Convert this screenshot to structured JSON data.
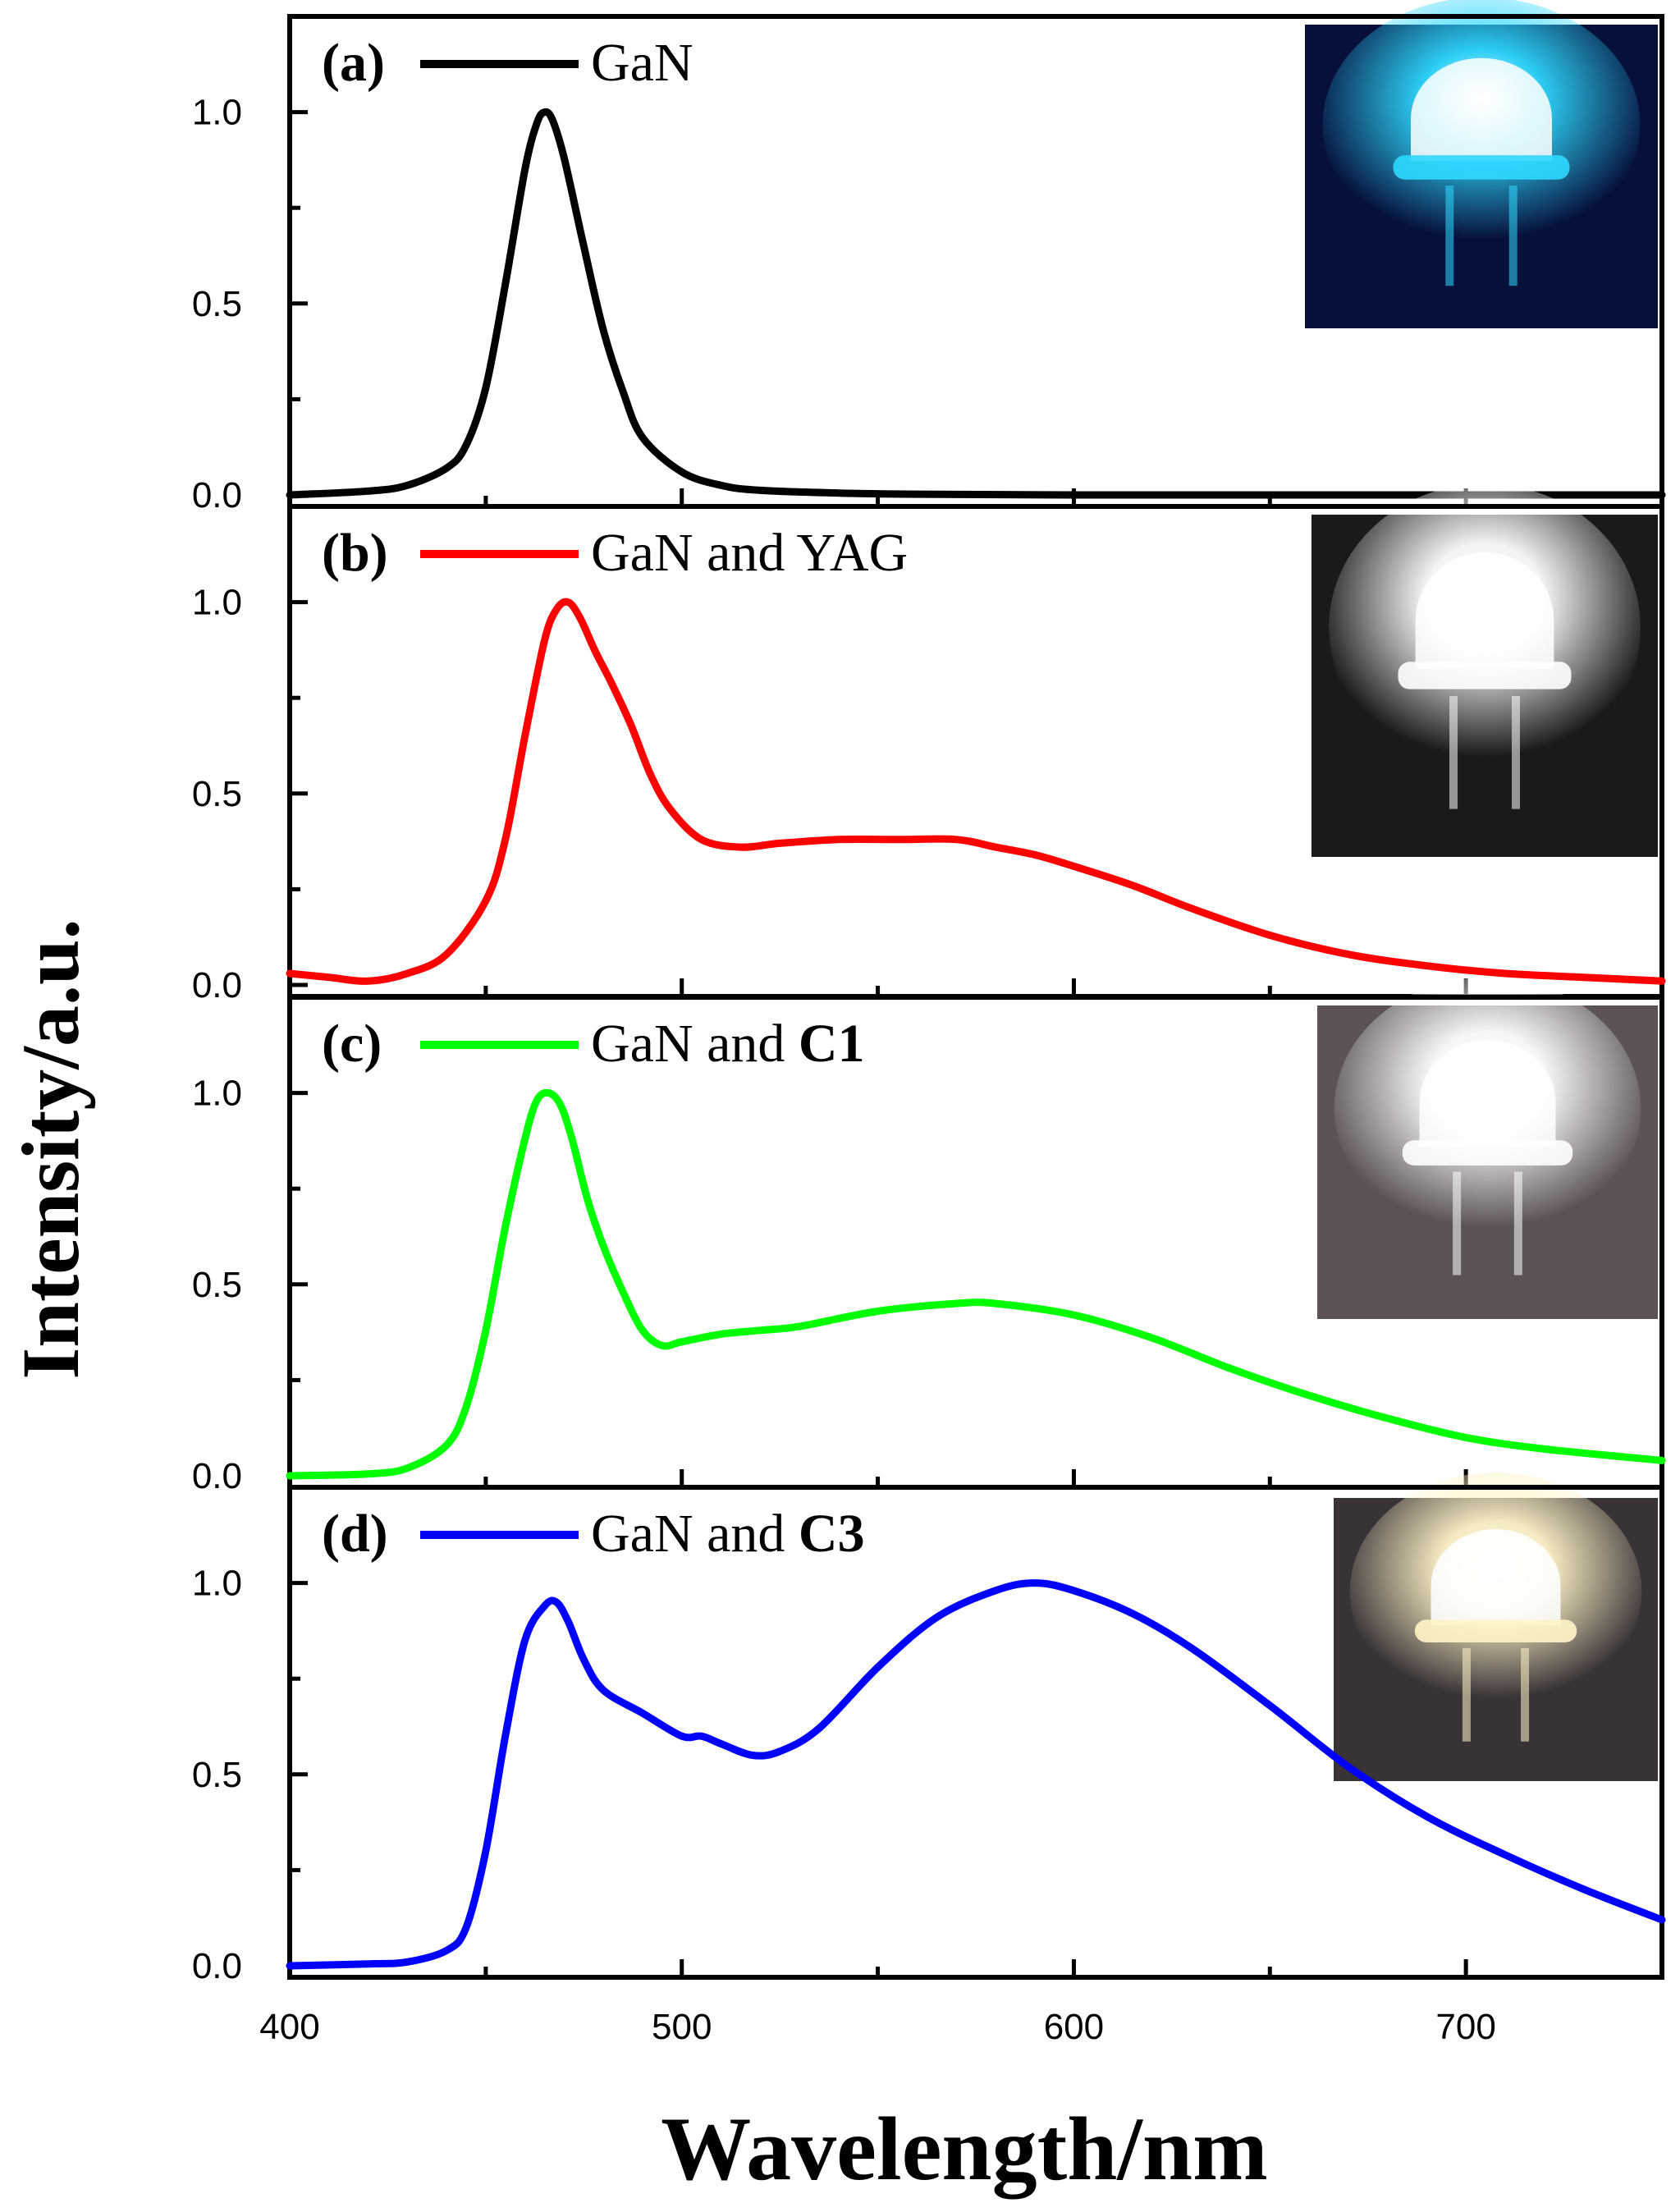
{
  "chart_data": {
    "type": "line",
    "xlabel": "Wavelength/nm",
    "ylabel": "Intensity/a.u.",
    "xlim": [
      400,
      750
    ],
    "x_ticks": [
      400,
      500,
      600,
      700
    ],
    "ylim": [
      -0.03,
      1.25
    ],
    "y_ticks": [
      0.0,
      0.5,
      1.0
    ],
    "y_tick_labels": [
      "0.0",
      "0.5",
      "1.0"
    ],
    "panels": [
      {
        "label": "(a)",
        "legend": {
          "prefix": "GaN",
          "bold_suffix": ""
        },
        "color": "#000000",
        "photo": {
          "glow": "#2fd8ff",
          "background": "#06103a",
          "type": "blue-led-photo"
        },
        "series": {
          "x": [
            400,
            420,
            430,
            440,
            445,
            450,
            455,
            460,
            463,
            465,
            467,
            470,
            475,
            480,
            485,
            490,
            500,
            510,
            520,
            540,
            560,
            600,
            650,
            700,
            750
          ],
          "y": [
            0.0,
            0.01,
            0.025,
            0.07,
            0.13,
            0.28,
            0.55,
            0.85,
            0.97,
            1.0,
            0.98,
            0.88,
            0.65,
            0.43,
            0.27,
            0.15,
            0.06,
            0.025,
            0.012,
            0.005,
            0.002,
            0.0,
            0.0,
            0.0,
            0.0
          ]
        }
      },
      {
        "label": "(b)",
        "legend": {
          "prefix": "GaN and YAG",
          "bold_suffix": ""
        },
        "color": "#ff0000",
        "photo": {
          "glow": "#ffffff",
          "background": "#1a1a18",
          "type": "white-led-photo"
        },
        "series": {
          "x": [
            400,
            410,
            420,
            430,
            440,
            450,
            455,
            460,
            465,
            468,
            471,
            474,
            478,
            482,
            487,
            492,
            497,
            505,
            515,
            525,
            540,
            555,
            570,
            580,
            590,
            600,
            615,
            630,
            650,
            670,
            690,
            710,
            730,
            750
          ],
          "y": [
            0.03,
            0.02,
            0.01,
            0.03,
            0.08,
            0.22,
            0.38,
            0.65,
            0.9,
            0.98,
            1.0,
            0.96,
            0.87,
            0.79,
            0.68,
            0.55,
            0.46,
            0.38,
            0.36,
            0.37,
            0.38,
            0.38,
            0.38,
            0.36,
            0.34,
            0.31,
            0.26,
            0.2,
            0.13,
            0.08,
            0.05,
            0.03,
            0.02,
            0.01
          ]
        }
      },
      {
        "label": "(c)",
        "legend": {
          "prefix": "GaN and ",
          "bold_suffix": "C1"
        },
        "color": "#00ff00",
        "photo": {
          "glow": "#ffffff",
          "background": "#5c5356",
          "type": "white-led-photo"
        },
        "series": {
          "x": [
            400,
            420,
            430,
            440,
            445,
            450,
            455,
            460,
            463,
            466,
            469,
            472,
            476,
            480,
            485,
            490,
            495,
            500,
            510,
            520,
            530,
            550,
            570,
            580,
            600,
            620,
            640,
            660,
            680,
            700,
            720,
            750
          ],
          "y": [
            0.0,
            0.005,
            0.02,
            0.08,
            0.18,
            0.38,
            0.65,
            0.88,
            0.98,
            1.0,
            0.97,
            0.88,
            0.72,
            0.6,
            0.48,
            0.38,
            0.34,
            0.35,
            0.37,
            0.38,
            0.39,
            0.43,
            0.45,
            0.45,
            0.42,
            0.36,
            0.28,
            0.21,
            0.15,
            0.1,
            0.07,
            0.04
          ]
        }
      },
      {
        "label": "(d)",
        "legend": {
          "prefix": "GaN and ",
          "bold_suffix": "C3"
        },
        "color": "#0000ff",
        "photo": {
          "glow": "#fff4c8",
          "background": "#3a3336",
          "type": "warm-white-led-photo"
        },
        "series": {
          "x": [
            400,
            420,
            430,
            440,
            445,
            450,
            455,
            460,
            465,
            468,
            471,
            475,
            480,
            490,
            500,
            505,
            510,
            518,
            525,
            535,
            550,
            565,
            580,
            590,
            600,
            615,
            630,
            650,
            670,
            690,
            710,
            730,
            750
          ],
          "y": [
            0.0,
            0.005,
            0.01,
            0.04,
            0.1,
            0.3,
            0.6,
            0.85,
            0.94,
            0.95,
            0.9,
            0.8,
            0.72,
            0.66,
            0.6,
            0.6,
            0.58,
            0.55,
            0.56,
            0.62,
            0.78,
            0.91,
            0.98,
            1.0,
            0.98,
            0.92,
            0.83,
            0.68,
            0.52,
            0.39,
            0.29,
            0.2,
            0.12
          ]
        }
      }
    ]
  }
}
